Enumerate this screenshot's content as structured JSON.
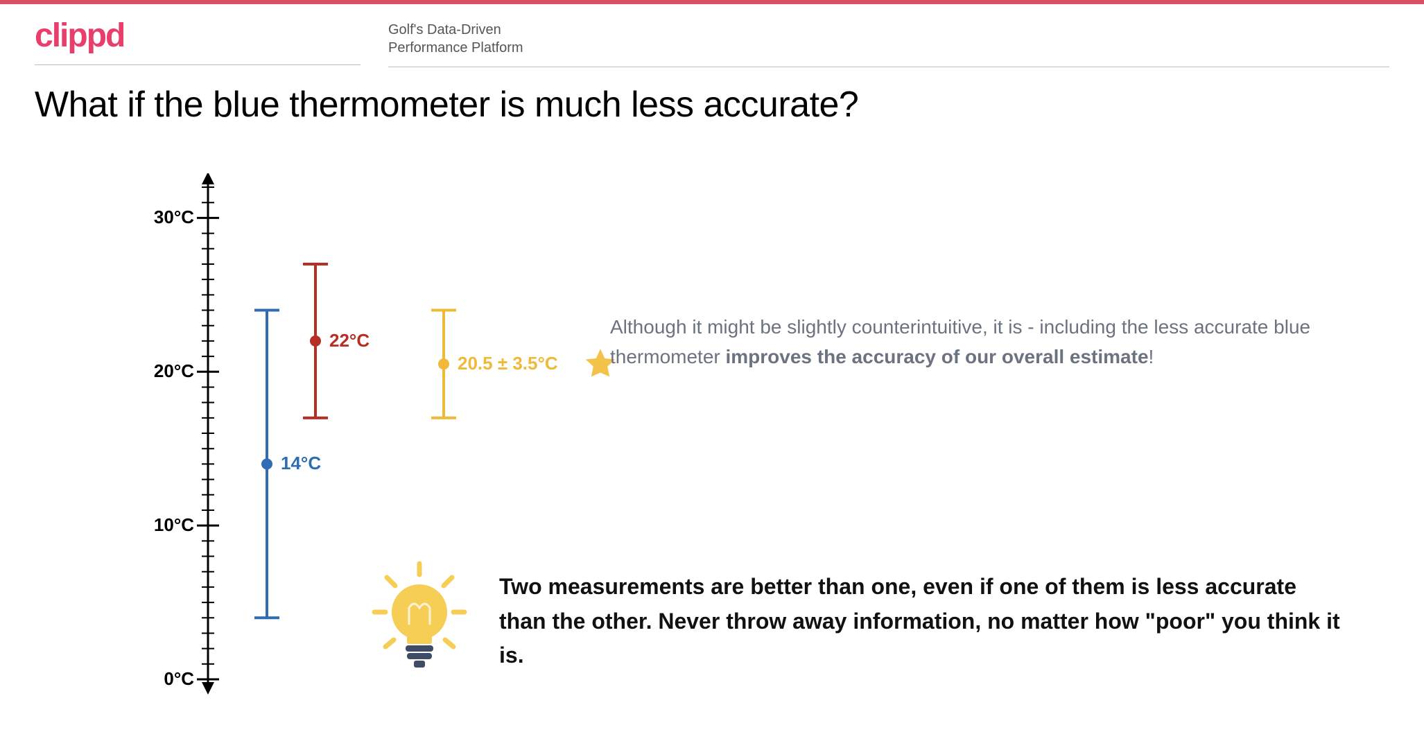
{
  "brand": {
    "logo_text": "clippd",
    "logo_color": "#e83e6b",
    "subtitle_line1": "Golf's Data-Driven",
    "subtitle_line2": "Performance Platform",
    "topbar_color": "#d95064"
  },
  "title": "What if the blue thermometer is much less accurate?",
  "chart": {
    "type": "errorbar",
    "y_axis": {
      "min": 0,
      "max": 32,
      "ticks": [
        0,
        10,
        20,
        30
      ],
      "tick_labels": [
        "0°C",
        "10°C",
        "20°C",
        "30°C"
      ],
      "minor_step": 1,
      "axis_color": "#000000",
      "axis_width": 3,
      "label_fontsize": 26,
      "label_fontweight": 700
    },
    "series": [
      {
        "id": "blue",
        "x": 1,
        "value": 14,
        "low": 4,
        "high": 24,
        "color": "#2e6db4",
        "line_width": 4,
        "cap_width": 18,
        "dot_radius": 8,
        "label": "14°C",
        "label_color": "#2e6db4"
      },
      {
        "id": "red",
        "x": 2,
        "value": 22,
        "low": 17,
        "high": 27,
        "color": "#b72f24",
        "line_width": 4,
        "cap_width": 18,
        "dot_radius": 8,
        "label": "22°C",
        "label_color": "#b72f24"
      },
      {
        "id": "combined",
        "x": 3,
        "value": 20.5,
        "low": 17,
        "high": 24,
        "color": "#f0b93a",
        "line_width": 4,
        "cap_width": 18,
        "dot_radius": 8,
        "label": "20.5 ± 3.5°C",
        "label_color": "#f0b93a"
      }
    ],
    "x_spacing": 70,
    "x_start": 85,
    "x_combined_offset": 115
  },
  "explain": {
    "pre": "Although it might be slightly counterintuitive, it is - including the less accurate blue thermometer ",
    "bold": "improves the accuracy of our overall estimate",
    "post": "!"
  },
  "takeaway": "Two measurements are better than one, even if one of them is less accurate than the other. Never throw away information, no matter how \"poor\" you think it is.",
  "icons": {
    "star_color": "#f2c24b",
    "bulb_glass_color": "#f6ce55",
    "bulb_base_color": "#3f4c66",
    "bulb_ray_color": "#f6ce55"
  }
}
